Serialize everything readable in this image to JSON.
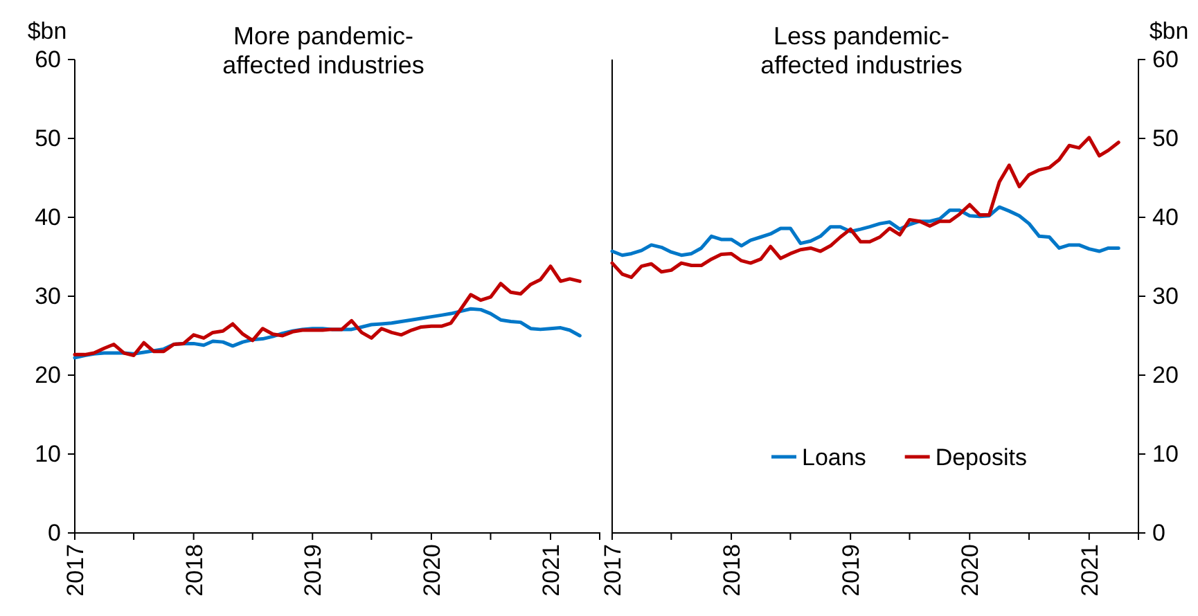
{
  "chart_data": [
    {
      "type": "line",
      "title": "More pandemic-\naffected industries",
      "ylabel": "$bn",
      "x": [
        "2017-01",
        "2017-02",
        "2017-03",
        "2017-04",
        "2017-05",
        "2017-06",
        "2017-07",
        "2017-08",
        "2017-09",
        "2017-10",
        "2017-11",
        "2017-12",
        "2018-01",
        "2018-02",
        "2018-03",
        "2018-04",
        "2018-05",
        "2018-06",
        "2018-07",
        "2018-08",
        "2018-09",
        "2018-10",
        "2018-11",
        "2018-12",
        "2019-01",
        "2019-02",
        "2019-03",
        "2019-04",
        "2019-05",
        "2019-06",
        "2019-07",
        "2019-08",
        "2019-09",
        "2019-10",
        "2019-11",
        "2019-12",
        "2020-01",
        "2020-02",
        "2020-03",
        "2020-04",
        "2020-05",
        "2020-06",
        "2020-07",
        "2020-08",
        "2020-09",
        "2020-10",
        "2020-11",
        "2020-12",
        "2021-01",
        "2021-02",
        "2021-03",
        "2021-04"
      ],
      "series": [
        {
          "color": "#0077c8",
          "values": [
            22.2,
            22.5,
            22.7,
            22.8,
            22.8,
            22.8,
            22.7,
            22.9,
            23.1,
            23.3,
            23.9,
            24.0,
            24.0,
            23.8,
            24.3,
            24.2,
            23.7,
            24.2,
            24.5,
            24.6,
            24.9,
            25.3,
            25.6,
            25.8,
            25.9,
            25.9,
            25.8,
            25.8,
            25.8,
            26.1,
            26.4,
            26.5,
            26.6,
            26.8,
            27.0,
            27.2,
            27.4,
            27.6,
            27.8,
            28.1,
            28.4,
            28.3,
            27.8,
            27.0,
            26.8,
            26.7,
            25.9,
            25.8,
            25.9,
            26.0,
            25.7,
            25.0
          ]
        },
        {
          "color": "#c00000",
          "values": [
            22.6,
            22.6,
            22.8,
            23.4,
            23.9,
            22.8,
            22.5,
            24.1,
            23.0,
            23.0,
            23.9,
            24.0,
            25.1,
            24.7,
            25.4,
            25.6,
            26.5,
            25.2,
            24.4,
            25.9,
            25.2,
            25.0,
            25.5,
            25.7,
            25.7,
            25.7,
            25.8,
            25.8,
            26.9,
            25.4,
            24.7,
            25.9,
            25.4,
            25.1,
            25.7,
            26.1,
            26.2,
            26.2,
            26.6,
            28.4,
            30.2,
            29.5,
            29.9,
            31.6,
            30.5,
            30.3,
            31.5,
            32.1,
            33.8,
            31.9,
            32.2,
            31.9
          ]
        }
      ],
      "xlim": [
        "2017-01",
        "2021-06"
      ],
      "xticks": [
        {
          "value": "2017-01",
          "label": "2017"
        },
        {
          "value": "2017-07",
          "label": null
        },
        {
          "value": "2018-01",
          "label": "2018"
        },
        {
          "value": "2018-07",
          "label": null
        },
        {
          "value": "2019-01",
          "label": "2019"
        },
        {
          "value": "2019-07",
          "label": null
        },
        {
          "value": "2020-01",
          "label": "2020"
        },
        {
          "value": "2020-07",
          "label": null
        },
        {
          "value": "2021-01",
          "label": "2021"
        }
      ],
      "ylim": [
        0,
        60
      ],
      "yticks": [
        0,
        10,
        20,
        30,
        40,
        50,
        60
      ],
      "grid": false,
      "legend": false
    },
    {
      "type": "line",
      "title": "Less pandemic-\naffected industries",
      "ylabel": "$bn",
      "x": [
        "2017-01",
        "2017-02",
        "2017-03",
        "2017-04",
        "2017-05",
        "2017-06",
        "2017-07",
        "2017-08",
        "2017-09",
        "2017-10",
        "2017-11",
        "2017-12",
        "2018-01",
        "2018-02",
        "2018-03",
        "2018-04",
        "2018-05",
        "2018-06",
        "2018-07",
        "2018-08",
        "2018-09",
        "2018-10",
        "2018-11",
        "2018-12",
        "2019-01",
        "2019-02",
        "2019-03",
        "2019-04",
        "2019-05",
        "2019-06",
        "2019-07",
        "2019-08",
        "2019-09",
        "2019-10",
        "2019-11",
        "2019-12",
        "2020-01",
        "2020-02",
        "2020-03",
        "2020-04",
        "2020-05",
        "2020-06",
        "2020-07",
        "2020-08",
        "2020-09",
        "2020-10",
        "2020-11",
        "2020-12",
        "2021-01",
        "2021-02",
        "2021-03",
        "2021-04"
      ],
      "series": [
        {
          "name": "Loans",
          "color": "#0077c8",
          "values": [
            35.7,
            35.2,
            35.4,
            35.8,
            36.5,
            36.2,
            35.6,
            35.2,
            35.4,
            36.1,
            37.6,
            37.2,
            37.2,
            36.4,
            37.1,
            37.5,
            37.9,
            38.6,
            38.6,
            36.7,
            37.0,
            37.6,
            38.8,
            38.8,
            38.2,
            38.5,
            38.8,
            39.2,
            39.4,
            38.5,
            39.1,
            39.5,
            39.5,
            39.8,
            40.9,
            40.9,
            40.2,
            40.1,
            40.2,
            41.3,
            40.8,
            40.2,
            39.2,
            37.6,
            37.5,
            36.1,
            36.5,
            36.5,
            36.0,
            35.7,
            36.1,
            36.1
          ]
        },
        {
          "name": "Deposits",
          "color": "#c00000",
          "values": [
            34.2,
            32.8,
            32.4,
            33.8,
            34.1,
            33.1,
            33.3,
            34.2,
            33.9,
            33.9,
            34.7,
            35.3,
            35.4,
            34.5,
            34.2,
            34.7,
            36.3,
            34.8,
            35.4,
            35.9,
            36.1,
            35.7,
            36.4,
            37.5,
            38.5,
            36.9,
            36.9,
            37.5,
            38.6,
            37.8,
            39.7,
            39.5,
            38.9,
            39.5,
            39.5,
            40.4,
            41.6,
            40.3,
            40.3,
            44.5,
            46.6,
            43.9,
            45.4,
            46.0,
            46.3,
            47.3,
            49.1,
            48.8,
            50.1,
            47.8,
            48.5,
            49.5
          ]
        }
      ],
      "xlim": [
        "2017-01",
        "2021-06"
      ],
      "xticks": [
        {
          "value": "2017-01",
          "label": "2017"
        },
        {
          "value": "2017-07",
          "label": null
        },
        {
          "value": "2018-01",
          "label": "2018"
        },
        {
          "value": "2018-07",
          "label": null
        },
        {
          "value": "2019-01",
          "label": "2019"
        },
        {
          "value": "2019-07",
          "label": null
        },
        {
          "value": "2020-01",
          "label": "2020"
        },
        {
          "value": "2020-07",
          "label": null
        },
        {
          "value": "2021-01",
          "label": "2021"
        }
      ],
      "ylim": [
        0,
        60
      ],
      "yticks": [
        0,
        10,
        20,
        30,
        40,
        50,
        60
      ],
      "grid": false,
      "legend": "bottom right"
    }
  ]
}
